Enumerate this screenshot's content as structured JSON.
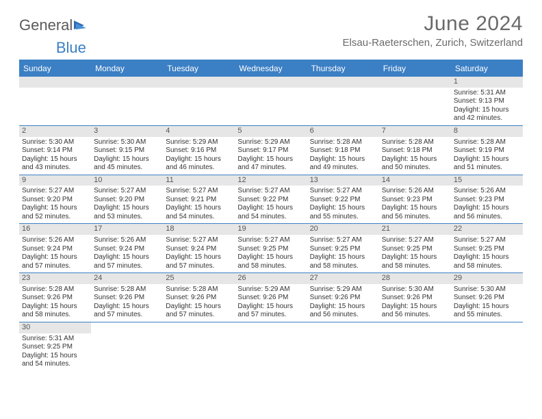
{
  "logo": {
    "text1": "General",
    "text2": "Blue"
  },
  "title": "June 2024",
  "location": "Elsau-Raeterschen, Zurich, Switzerland",
  "colors": {
    "header_bg": "#3b7fc4",
    "header_text": "#ffffff",
    "daynum_bg": "#e6e6e6",
    "border": "#3b7fc4",
    "text": "#333333",
    "title_text": "#6a6a6a"
  },
  "day_names": [
    "Sunday",
    "Monday",
    "Tuesday",
    "Wednesday",
    "Thursday",
    "Friday",
    "Saturday"
  ],
  "weeks": [
    [
      null,
      null,
      null,
      null,
      null,
      null,
      {
        "n": "1",
        "sunrise": "5:31 AM",
        "sunset": "9:13 PM",
        "dl_h": 15,
        "dl_m": 42
      }
    ],
    [
      {
        "n": "2",
        "sunrise": "5:30 AM",
        "sunset": "9:14 PM",
        "dl_h": 15,
        "dl_m": 43
      },
      {
        "n": "3",
        "sunrise": "5:30 AM",
        "sunset": "9:15 PM",
        "dl_h": 15,
        "dl_m": 45
      },
      {
        "n": "4",
        "sunrise": "5:29 AM",
        "sunset": "9:16 PM",
        "dl_h": 15,
        "dl_m": 46
      },
      {
        "n": "5",
        "sunrise": "5:29 AM",
        "sunset": "9:17 PM",
        "dl_h": 15,
        "dl_m": 47
      },
      {
        "n": "6",
        "sunrise": "5:28 AM",
        "sunset": "9:18 PM",
        "dl_h": 15,
        "dl_m": 49
      },
      {
        "n": "7",
        "sunrise": "5:28 AM",
        "sunset": "9:18 PM",
        "dl_h": 15,
        "dl_m": 50
      },
      {
        "n": "8",
        "sunrise": "5:28 AM",
        "sunset": "9:19 PM",
        "dl_h": 15,
        "dl_m": 51
      }
    ],
    [
      {
        "n": "9",
        "sunrise": "5:27 AM",
        "sunset": "9:20 PM",
        "dl_h": 15,
        "dl_m": 52
      },
      {
        "n": "10",
        "sunrise": "5:27 AM",
        "sunset": "9:20 PM",
        "dl_h": 15,
        "dl_m": 53
      },
      {
        "n": "11",
        "sunrise": "5:27 AM",
        "sunset": "9:21 PM",
        "dl_h": 15,
        "dl_m": 54
      },
      {
        "n": "12",
        "sunrise": "5:27 AM",
        "sunset": "9:22 PM",
        "dl_h": 15,
        "dl_m": 54
      },
      {
        "n": "13",
        "sunrise": "5:27 AM",
        "sunset": "9:22 PM",
        "dl_h": 15,
        "dl_m": 55
      },
      {
        "n": "14",
        "sunrise": "5:26 AM",
        "sunset": "9:23 PM",
        "dl_h": 15,
        "dl_m": 56
      },
      {
        "n": "15",
        "sunrise": "5:26 AM",
        "sunset": "9:23 PM",
        "dl_h": 15,
        "dl_m": 56
      }
    ],
    [
      {
        "n": "16",
        "sunrise": "5:26 AM",
        "sunset": "9:24 PM",
        "dl_h": 15,
        "dl_m": 57
      },
      {
        "n": "17",
        "sunrise": "5:26 AM",
        "sunset": "9:24 PM",
        "dl_h": 15,
        "dl_m": 57
      },
      {
        "n": "18",
        "sunrise": "5:27 AM",
        "sunset": "9:24 PM",
        "dl_h": 15,
        "dl_m": 57
      },
      {
        "n": "19",
        "sunrise": "5:27 AM",
        "sunset": "9:25 PM",
        "dl_h": 15,
        "dl_m": 58
      },
      {
        "n": "20",
        "sunrise": "5:27 AM",
        "sunset": "9:25 PM",
        "dl_h": 15,
        "dl_m": 58
      },
      {
        "n": "21",
        "sunrise": "5:27 AM",
        "sunset": "9:25 PM",
        "dl_h": 15,
        "dl_m": 58
      },
      {
        "n": "22",
        "sunrise": "5:27 AM",
        "sunset": "9:25 PM",
        "dl_h": 15,
        "dl_m": 58
      }
    ],
    [
      {
        "n": "23",
        "sunrise": "5:28 AM",
        "sunset": "9:26 PM",
        "dl_h": 15,
        "dl_m": 58
      },
      {
        "n": "24",
        "sunrise": "5:28 AM",
        "sunset": "9:26 PM",
        "dl_h": 15,
        "dl_m": 57
      },
      {
        "n": "25",
        "sunrise": "5:28 AM",
        "sunset": "9:26 PM",
        "dl_h": 15,
        "dl_m": 57
      },
      {
        "n": "26",
        "sunrise": "5:29 AM",
        "sunset": "9:26 PM",
        "dl_h": 15,
        "dl_m": 57
      },
      {
        "n": "27",
        "sunrise": "5:29 AM",
        "sunset": "9:26 PM",
        "dl_h": 15,
        "dl_m": 56
      },
      {
        "n": "28",
        "sunrise": "5:30 AM",
        "sunset": "9:26 PM",
        "dl_h": 15,
        "dl_m": 56
      },
      {
        "n": "29",
        "sunrise": "5:30 AM",
        "sunset": "9:26 PM",
        "dl_h": 15,
        "dl_m": 55
      }
    ],
    [
      {
        "n": "30",
        "sunrise": "5:31 AM",
        "sunset": "9:25 PM",
        "dl_h": 15,
        "dl_m": 54
      },
      null,
      null,
      null,
      null,
      null,
      null
    ]
  ],
  "labels": {
    "sunrise": "Sunrise:",
    "sunset": "Sunset:",
    "daylight_prefix": "Daylight:",
    "hours_word": "hours",
    "and_word": "and",
    "minutes_word": "minutes."
  }
}
